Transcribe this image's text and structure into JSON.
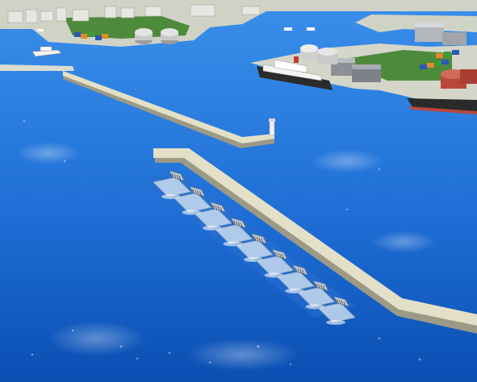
{
  "scene": {
    "colors": {
      "sea_deep": "#0b4fb3",
      "sea_light": "#2f86e6",
      "land_green": "#4e8a3c",
      "pavement": "#d9dccf",
      "breakwater": "#e4e0c8",
      "breakwater_shadow": "#9c9a86",
      "panel": "#dfe9f3",
      "panel_frame": "#8fa6b8",
      "ship_hull": "#2b2b2b",
      "tank": "#c9c9c9",
      "tank_red": "#b8483a",
      "container_blue": "#2a58b5",
      "container_orange": "#e18a2a",
      "container_green": "#3f9a3a"
    },
    "labels": {},
    "panel_count": 9
  }
}
